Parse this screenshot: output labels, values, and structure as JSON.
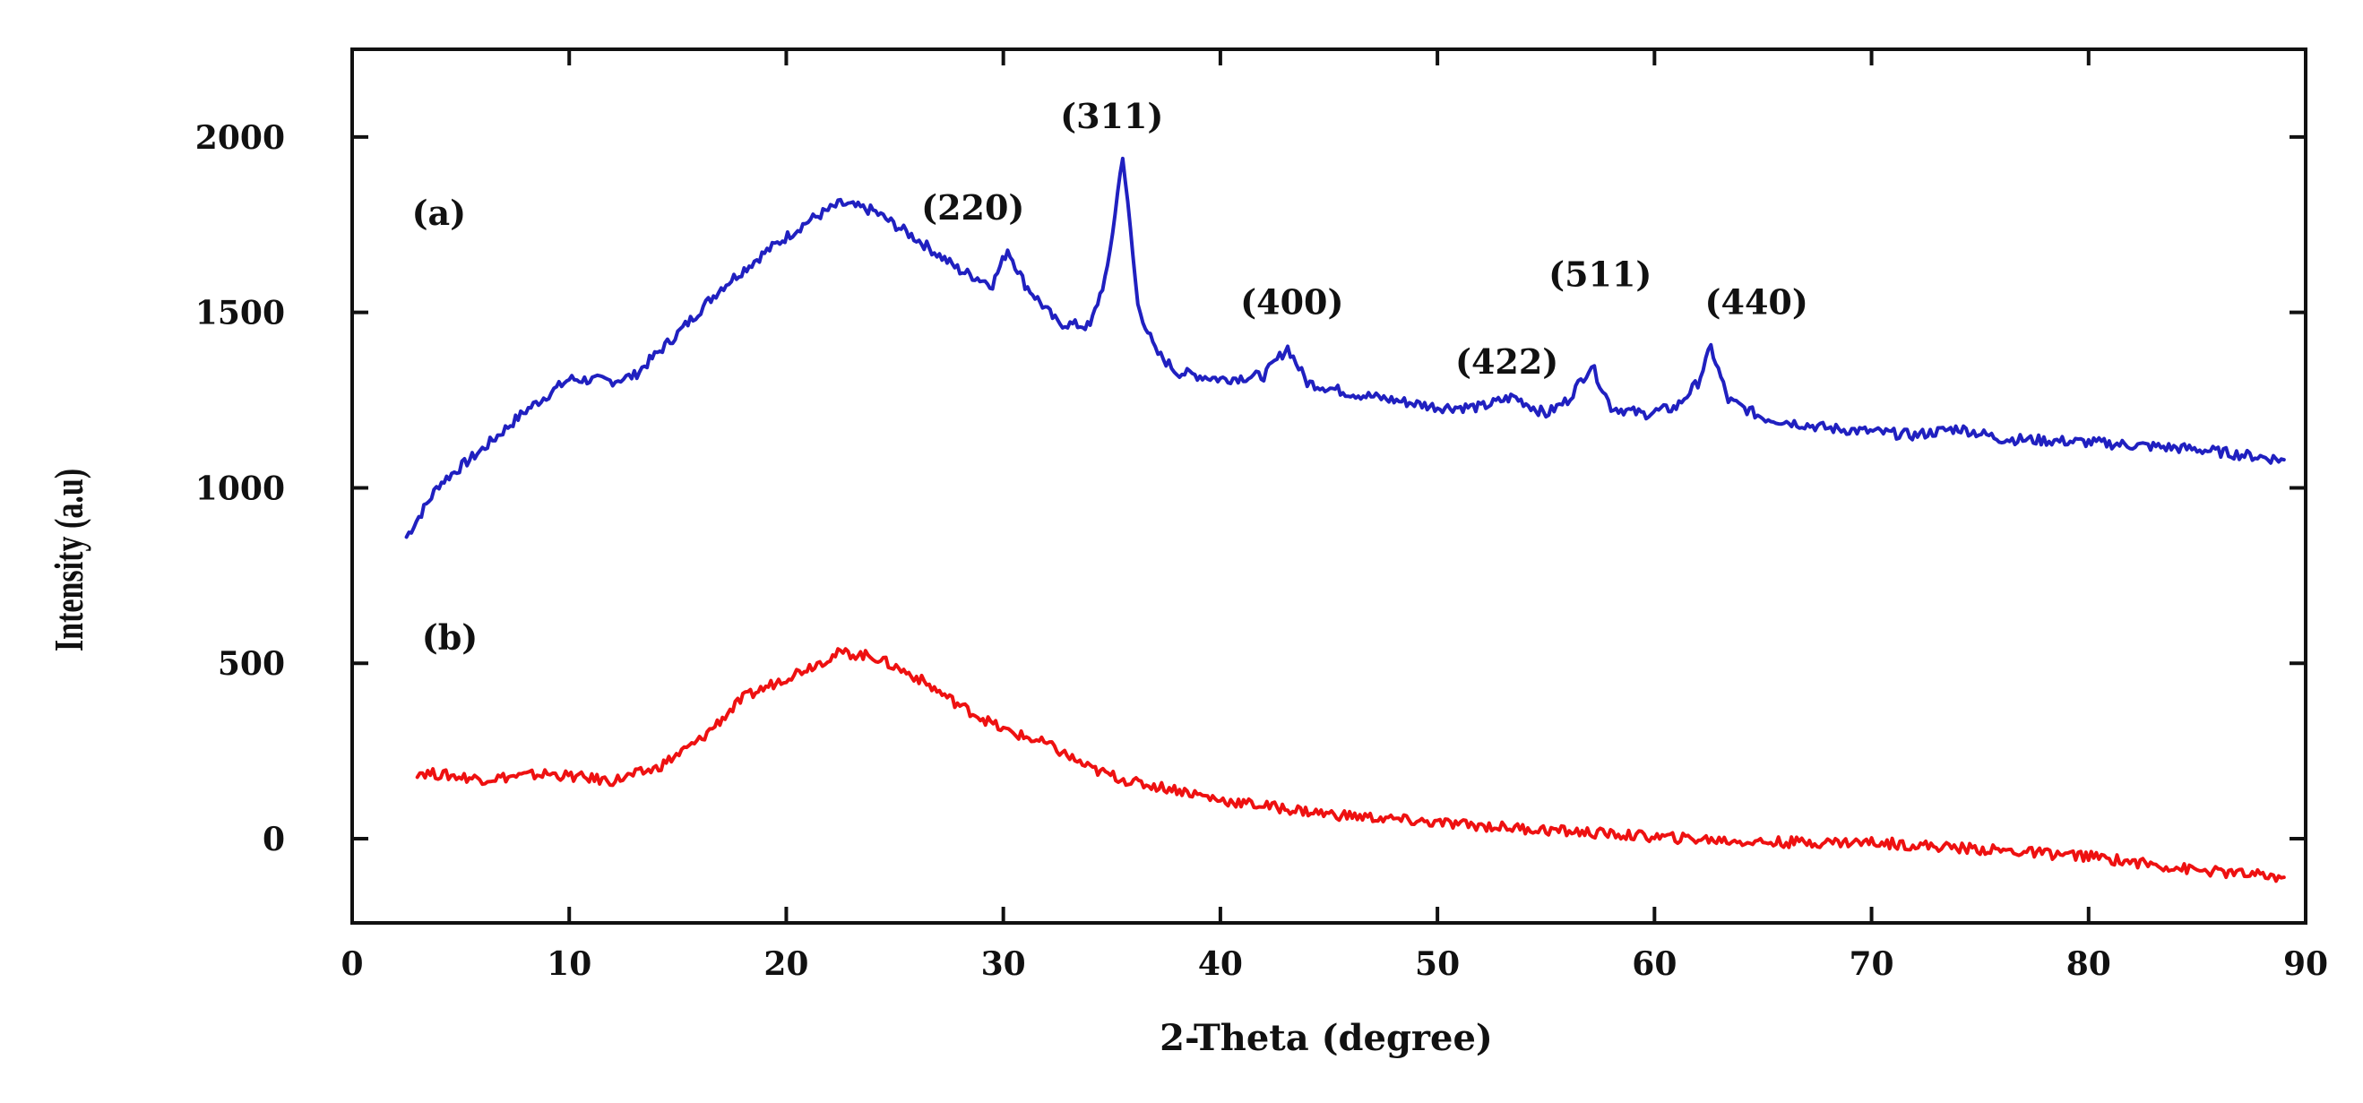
{
  "chart_data": {
    "type": "line",
    "title": "",
    "xlabel": "2-Theta (degree)",
    "ylabel": "Intensity (a.u)",
    "xlim": [
      0,
      90
    ],
    "ylim": [
      -240,
      2250
    ],
    "xticks": [
      0,
      10,
      20,
      30,
      40,
      50,
      60,
      70,
      80,
      90
    ],
    "yticks": [
      0,
      500,
      1000,
      1500,
      2000
    ],
    "grid": false,
    "series": [
      {
        "name": "(a)",
        "color": "#2020c0",
        "x": [
          2.5,
          4,
          6,
          8,
          10,
          12,
          13,
          15,
          17,
          19,
          21,
          22.5,
          24,
          26,
          28,
          29.5,
          30.2,
          31,
          32.5,
          34,
          34.8,
          35.5,
          36.2,
          37,
          38,
          40,
          42,
          43.1,
          44,
          46,
          48,
          50,
          52,
          53.5,
          55,
          56,
          57.1,
          58,
          59.5,
          61,
          62,
          62.6,
          63.4,
          65,
          68,
          72,
          74,
          76,
          80,
          85,
          89
        ],
        "values": [
          860,
          1010,
          1110,
          1220,
          1310,
          1305,
          1320,
          1440,
          1570,
          1670,
          1760,
          1810,
          1790,
          1710,
          1620,
          1580,
          1680,
          1580,
          1470,
          1460,
          1620,
          1950,
          1520,
          1390,
          1330,
          1310,
          1320,
          1400,
          1300,
          1270,
          1250,
          1230,
          1230,
          1260,
          1210,
          1250,
          1350,
          1230,
          1210,
          1230,
          1300,
          1400,
          1250,
          1200,
          1170,
          1150,
          1170,
          1140,
          1130,
          1110,
          1080
        ]
      },
      {
        "name": "(b)",
        "color": "#ee1111",
        "x": [
          3,
          6,
          9,
          12,
          14,
          16,
          18,
          20,
          22.5,
          24,
          26,
          28,
          30,
          32,
          34,
          36,
          38,
          40,
          45,
          50,
          55,
          60,
          65,
          70,
          75,
          80,
          85,
          89
        ],
        "values": [
          190,
          170,
          185,
          165,
          200,
          280,
          400,
          460,
          530,
          520,
          460,
          380,
          310,
          270,
          200,
          160,
          140,
          110,
          70,
          45,
          25,
          5,
          -10,
          -10,
          -30,
          -50,
          -90,
          -110
        ]
      }
    ],
    "annotations": [
      {
        "text": "(a)",
        "x": 4,
        "y": 1750
      },
      {
        "text": "(b)",
        "x": 4.5,
        "y": 540
      },
      {
        "text": "(220)",
        "x": 28.6,
        "y": 1765
      },
      {
        "text": "(311)",
        "x": 35,
        "y": 2025
      },
      {
        "text": "(400)",
        "x": 43.3,
        "y": 1495
      },
      {
        "text": "(422)",
        "x": 53.2,
        "y": 1325
      },
      {
        "text": "(511)",
        "x": 57.5,
        "y": 1575
      },
      {
        "text": "(440)",
        "x": 64.7,
        "y": 1495
      }
    ]
  }
}
